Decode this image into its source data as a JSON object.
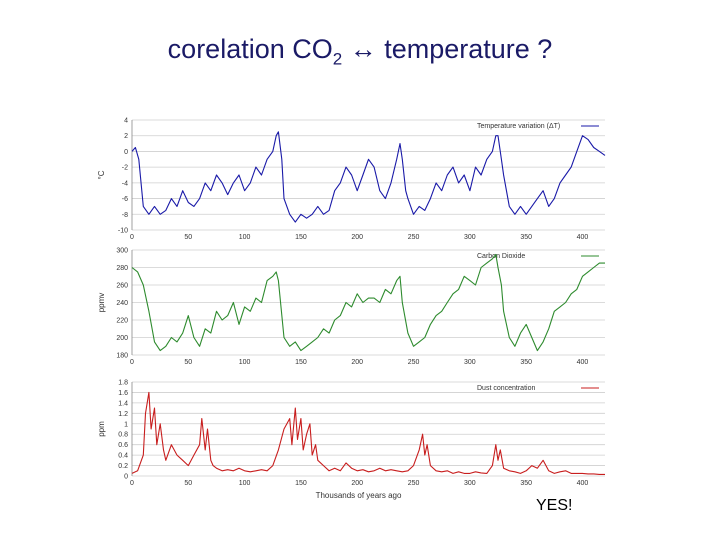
{
  "slide": {
    "title_pre": "corelation CO",
    "title_sub": "2",
    "title_post": " ↔ temperature ?",
    "note": "YES!"
  },
  "chart_data": [
    {
      "type": "line",
      "title": "",
      "legend": "Temperature variation (ΔT)",
      "ylabel": "°C",
      "xlabel": "",
      "xlim": [
        0,
        420
      ],
      "ylim": [
        -10,
        4
      ],
      "yticks": [
        4,
        2,
        0,
        -2,
        -4,
        -6,
        -8,
        -10
      ],
      "xticks": [
        0,
        50,
        100,
        150,
        200,
        250,
        300,
        350,
        400
      ],
      "color": "#1a1aa8",
      "series": [
        {
          "name": "Temperature variation (ΔT)",
          "x": [
            0,
            3,
            6,
            10,
            15,
            20,
            25,
            30,
            35,
            40,
            45,
            50,
            55,
            60,
            65,
            70,
            75,
            80,
            85,
            90,
            95,
            100,
            105,
            110,
            115,
            120,
            125,
            128,
            130,
            133,
            135,
            140,
            145,
            150,
            155,
            160,
            165,
            170,
            175,
            180,
            185,
            190,
            195,
            200,
            205,
            210,
            215,
            220,
            225,
            230,
            235,
            238,
            240,
            243,
            245,
            250,
            255,
            260,
            265,
            270,
            275,
            280,
            285,
            290,
            295,
            300,
            305,
            310,
            315,
            320,
            323,
            325,
            328,
            330,
            335,
            340,
            345,
            350,
            355,
            360,
            365,
            370,
            375,
            380,
            385,
            390,
            395,
            400,
            405,
            410,
            415,
            420
          ],
          "y": [
            0,
            0.5,
            -1,
            -7,
            -8,
            -7,
            -8,
            -7.5,
            -6,
            -7,
            -5,
            -6.5,
            -7,
            -6,
            -4,
            -5,
            -3,
            -4,
            -5.5,
            -4,
            -3,
            -5,
            -4,
            -2,
            -3,
            -1,
            0,
            2,
            2.5,
            -1,
            -6,
            -8,
            -9,
            -8,
            -8.5,
            -8,
            -7,
            -8,
            -7.5,
            -5,
            -4,
            -2,
            -3,
            -5,
            -3,
            -1,
            -2,
            -5,
            -6,
            -4,
            -1,
            1,
            -1,
            -5,
            -6,
            -8,
            -7,
            -7.5,
            -6,
            -4,
            -5,
            -3,
            -2,
            -4,
            -3,
            -5,
            -2,
            -3,
            -1,
            0,
            2,
            2,
            -1,
            -3,
            -7,
            -8,
            -7,
            -8,
            -7,
            -6,
            -5,
            -7,
            -6,
            -4,
            -3,
            -2,
            0,
            2,
            1.5,
            0.5,
            0,
            -0.5
          ]
        }
      ]
    },
    {
      "type": "line",
      "title": "",
      "legend": "Carbon Dioxide",
      "ylabel": "ppmv",
      "xlabel": "",
      "xlim": [
        0,
        420
      ],
      "ylim": [
        180,
        300
      ],
      "yticks": [
        300,
        280,
        260,
        240,
        220,
        200,
        180
      ],
      "xticks": [
        0,
        50,
        100,
        150,
        200,
        250,
        300,
        350,
        400
      ],
      "color": "#2e8b2e",
      "series": [
        {
          "name": "Carbon Dioxide",
          "x": [
            0,
            5,
            10,
            15,
            20,
            25,
            30,
            35,
            40,
            45,
            50,
            55,
            60,
            65,
            70,
            75,
            80,
            85,
            90,
            95,
            100,
            105,
            110,
            115,
            120,
            125,
            128,
            130,
            135,
            140,
            145,
            150,
            155,
            160,
            165,
            170,
            175,
            180,
            185,
            190,
            195,
            200,
            205,
            210,
            215,
            220,
            225,
            230,
            235,
            238,
            240,
            245,
            250,
            255,
            260,
            265,
            270,
            275,
            280,
            285,
            290,
            295,
            300,
            305,
            310,
            315,
            320,
            323,
            325,
            328,
            330,
            335,
            340,
            345,
            350,
            355,
            360,
            365,
            370,
            375,
            380,
            385,
            390,
            395,
            400,
            405,
            410,
            415,
            420
          ],
          "y": [
            280,
            275,
            260,
            230,
            195,
            185,
            190,
            200,
            195,
            205,
            225,
            200,
            190,
            210,
            205,
            230,
            220,
            225,
            240,
            215,
            235,
            230,
            245,
            240,
            265,
            270,
            275,
            265,
            200,
            190,
            195,
            185,
            190,
            195,
            200,
            210,
            205,
            220,
            225,
            240,
            235,
            250,
            240,
            245,
            245,
            240,
            255,
            250,
            265,
            270,
            240,
            205,
            190,
            195,
            200,
            215,
            225,
            230,
            240,
            250,
            255,
            270,
            265,
            260,
            280,
            285,
            290,
            295,
            280,
            260,
            230,
            200,
            190,
            205,
            215,
            200,
            185,
            195,
            210,
            230,
            235,
            240,
            250,
            255,
            270,
            275,
            280,
            285,
            285
          ]
        }
      ]
    },
    {
      "type": "line",
      "title": "",
      "legend": "Dust concentration",
      "ylabel": "ppm",
      "xlabel": "Thousands of years ago",
      "xlim": [
        0,
        420
      ],
      "ylim": [
        0,
        1.8
      ],
      "yticks": [
        1.8,
        1.6,
        1.4,
        1.2,
        1,
        0.8,
        0.6,
        0.4,
        0.2,
        0
      ],
      "xticks": [
        0,
        50,
        100,
        150,
        200,
        250,
        300,
        350,
        400
      ],
      "color": "#c81e1e",
      "series": [
        {
          "name": "Dust concentration",
          "x": [
            0,
            5,
            10,
            12,
            15,
            17,
            20,
            22,
            25,
            28,
            30,
            35,
            40,
            45,
            50,
            55,
            60,
            62,
            65,
            67,
            70,
            72,
            75,
            80,
            85,
            90,
            95,
            100,
            105,
            110,
            115,
            120,
            125,
            130,
            135,
            140,
            142,
            145,
            147,
            150,
            152,
            155,
            158,
            160,
            163,
            165,
            170,
            175,
            180,
            185,
            190,
            195,
            200,
            205,
            210,
            215,
            220,
            225,
            230,
            235,
            240,
            245,
            250,
            255,
            258,
            260,
            262,
            265,
            270,
            275,
            280,
            285,
            290,
            295,
            300,
            305,
            310,
            315,
            320,
            323,
            325,
            327,
            330,
            335,
            340,
            345,
            350,
            355,
            360,
            365,
            370,
            375,
            380,
            385,
            390,
            395,
            400,
            405,
            410,
            415,
            420
          ],
          "y": [
            0.05,
            0.1,
            0.4,
            1.2,
            1.6,
            0.9,
            1.3,
            0.6,
            1.0,
            0.5,
            0.3,
            0.6,
            0.4,
            0.3,
            0.2,
            0.4,
            0.6,
            1.1,
            0.5,
            0.9,
            0.3,
            0.2,
            0.15,
            0.1,
            0.12,
            0.1,
            0.15,
            0.1,
            0.08,
            0.1,
            0.12,
            0.1,
            0.2,
            0.5,
            0.9,
            1.1,
            0.6,
            1.3,
            0.7,
            1.1,
            0.5,
            0.8,
            1.0,
            0.4,
            0.6,
            0.3,
            0.2,
            0.1,
            0.15,
            0.1,
            0.25,
            0.15,
            0.1,
            0.12,
            0.08,
            0.1,
            0.15,
            0.1,
            0.12,
            0.1,
            0.08,
            0.1,
            0.2,
            0.5,
            0.8,
            0.4,
            0.6,
            0.2,
            0.1,
            0.08,
            0.1,
            0.05,
            0.08,
            0.05,
            0.05,
            0.08,
            0.06,
            0.05,
            0.2,
            0.6,
            0.3,
            0.5,
            0.15,
            0.1,
            0.08,
            0.05,
            0.1,
            0.2,
            0.15,
            0.3,
            0.1,
            0.05,
            0.08,
            0.1,
            0.05,
            0.05,
            0.05,
            0.04,
            0.04,
            0.03,
            0.03
          ]
        }
      ]
    }
  ]
}
